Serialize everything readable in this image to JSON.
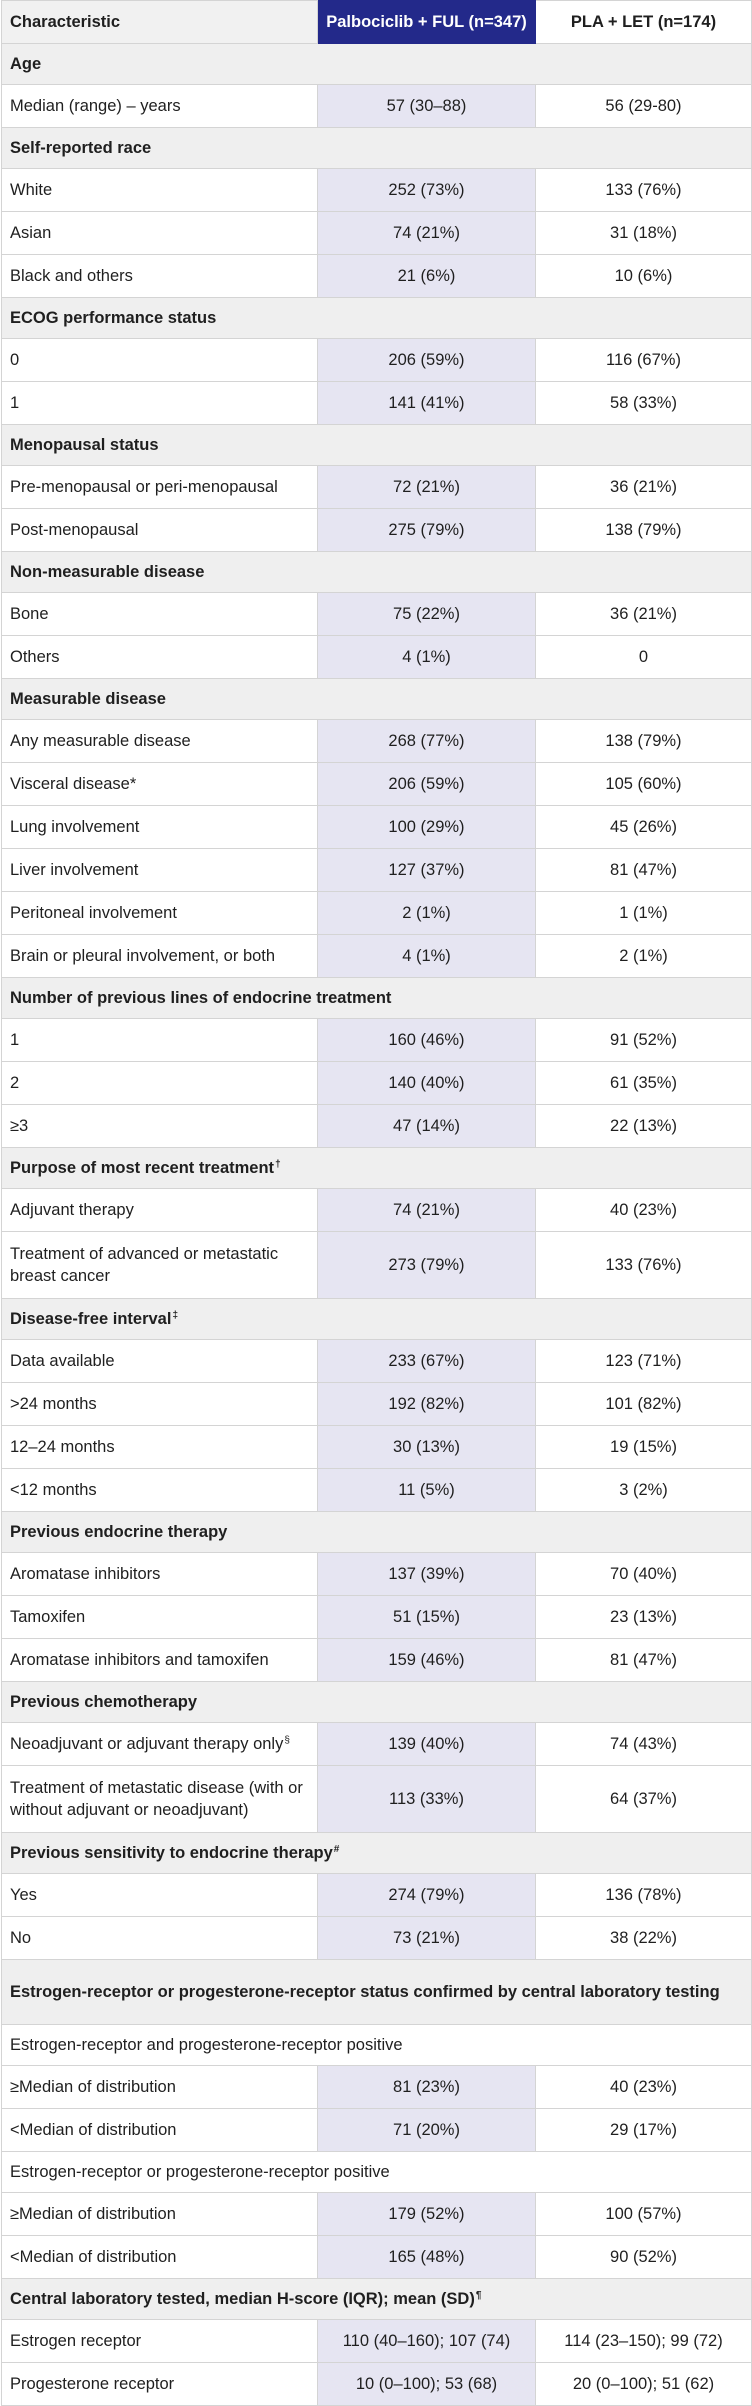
{
  "header": {
    "characteristic": "Characteristic",
    "arm1": "Palbociclib + FUL (n=347)",
    "arm2": "PLA + LET (n=174)"
  },
  "rows": [
    {
      "type": "section",
      "label": "Age"
    },
    {
      "type": "data",
      "label": "Median (range) – years",
      "v1": "57 (30–88)",
      "v2": "56 (29-80)"
    },
    {
      "type": "section",
      "label": "Self-reported race"
    },
    {
      "type": "data",
      "label": "White",
      "v1": "252 (73%)",
      "v2": "133 (76%)"
    },
    {
      "type": "data",
      "label": "Asian",
      "v1": "74 (21%)",
      "v2": "31 (18%)"
    },
    {
      "type": "data",
      "label": "Black and others",
      "v1": "21 (6%)",
      "v2": "10 (6%)"
    },
    {
      "type": "section",
      "label": "ECOG performance status"
    },
    {
      "type": "data",
      "label": "0",
      "v1": "206 (59%)",
      "v2": "116 (67%)"
    },
    {
      "type": "data",
      "label": "1",
      "v1": "141 (41%)",
      "v2": "58 (33%)"
    },
    {
      "type": "section",
      "label": "Menopausal status"
    },
    {
      "type": "data",
      "label": "Pre-menopausal or peri-menopausal",
      "v1": "72 (21%)",
      "v2": "36 (21%)"
    },
    {
      "type": "data",
      "label": "Post-menopausal",
      "v1": "275 (79%)",
      "v2": "138 (79%)"
    },
    {
      "type": "section",
      "label": "Non-measurable disease"
    },
    {
      "type": "data",
      "label": "Bone",
      "v1": "75 (22%)",
      "v2": "36 (21%)"
    },
    {
      "type": "data",
      "label": "Others",
      "v1": "4 (1%)",
      "v2": "0"
    },
    {
      "type": "section",
      "label": "Measurable disease"
    },
    {
      "type": "data",
      "label": "Any measurable disease",
      "v1": "268 (77%)",
      "v2": "138 (79%)"
    },
    {
      "type": "data",
      "label": "Visceral disease*",
      "v1": "206 (59%)",
      "v2": "105 (60%)"
    },
    {
      "type": "data",
      "label": "Lung involvement",
      "v1": "100 (29%)",
      "v2": "45 (26%)"
    },
    {
      "type": "data",
      "label": "Liver involvement",
      "v1": "127 (37%)",
      "v2": "81 (47%)"
    },
    {
      "type": "data",
      "label": "Peritoneal involvement",
      "v1": "2 (1%)",
      "v2": "1 (1%)"
    },
    {
      "type": "data",
      "label": "Brain or pleural involvement, or both",
      "v1": "4 (1%)",
      "v2": "2 (1%)"
    },
    {
      "type": "section",
      "label": "Number of previous lines of endocrine treatment"
    },
    {
      "type": "data",
      "label": "1",
      "v1": "160 (46%)",
      "v2": "91 (52%)"
    },
    {
      "type": "data",
      "label": "2",
      "v1": "140 (40%)",
      "v2": "61 (35%)"
    },
    {
      "type": "data",
      "label": "≥3",
      "v1": "47 (14%)",
      "v2": "22 (13%)"
    },
    {
      "type": "section",
      "label": "Purpose of most recent treatment",
      "mark": "†"
    },
    {
      "type": "data",
      "label": "Adjuvant therapy",
      "v1": "74 (21%)",
      "v2": "40 (23%)"
    },
    {
      "type": "data",
      "tall": true,
      "label": "Treatment of advanced or metastatic breast cancer",
      "v1": "273 (79%)",
      "v2": "133 (76%)"
    },
    {
      "type": "section",
      "label": "Disease-free interval",
      "mark": "‡"
    },
    {
      "type": "data",
      "label": "Data available",
      "v1": "233 (67%)",
      "v2": "123 (71%)"
    },
    {
      "type": "data",
      "label": ">24 months",
      "v1": "192 (82%)",
      "v2": "101 (82%)"
    },
    {
      "type": "data",
      "label": "12–24 months",
      "v1": "30 (13%)",
      "v2": "19 (15%)"
    },
    {
      "type": "data",
      "label": "<12 months",
      "v1": "11 (5%)",
      "v2": "3 (2%)"
    },
    {
      "type": "section",
      "label": "Previous endocrine therapy"
    },
    {
      "type": "data",
      "label": "Aromatase inhibitors",
      "v1": "137 (39%)",
      "v2": "70 (40%)"
    },
    {
      "type": "data",
      "label": "Tamoxifen",
      "v1": "51 (15%)",
      "v2": "23 (13%)"
    },
    {
      "type": "data",
      "label": "Aromatase inhibitors and tamoxifen",
      "v1": "159 (46%)",
      "v2": "81 (47%)"
    },
    {
      "type": "section",
      "label": "Previous chemotherapy"
    },
    {
      "type": "data",
      "label": "Neoadjuvant or adjuvant therapy only",
      "mark": "§",
      "v1": "139 (40%)",
      "v2": "74 (43%)"
    },
    {
      "type": "data",
      "tall": true,
      "label": "Treatment of metastatic disease (with or without adjuvant or neoadjuvant)",
      "v1": "113 (33%)",
      "v2": "64 (37%)"
    },
    {
      "type": "section",
      "label": "Previous sensitivity to endocrine therapy",
      "mark": "#"
    },
    {
      "type": "data",
      "label": "Yes",
      "v1": "274 (79%)",
      "v2": "136 (78%)"
    },
    {
      "type": "data",
      "label": "No",
      "v1": "73 (21%)",
      "v2": "38 (22%)"
    },
    {
      "type": "section",
      "tall": true,
      "label": "Estrogen-receptor or progesterone-receptor status confirmed by central laboratory testing"
    },
    {
      "type": "sub",
      "label": "Estrogen-receptor and progesterone-receptor positive"
    },
    {
      "type": "data",
      "label": "≥Median of distribution",
      "v1": "81 (23%)",
      "v2": "40 (23%)"
    },
    {
      "type": "data",
      "label": "<Median of distribution",
      "v1": "71 (20%)",
      "v2": "29 (17%)"
    },
    {
      "type": "sub",
      "label": "Estrogen-receptor or progesterone-receptor positive"
    },
    {
      "type": "data",
      "label": "≥Median of distribution",
      "v1": "179 (52%)",
      "v2": "100 (57%)"
    },
    {
      "type": "data",
      "label": "<Median of distribution",
      "v1": "165 (48%)",
      "v2": "90 (52%)"
    },
    {
      "type": "section",
      "label": "Central laboratory tested, median H-score (IQR); mean (SD)",
      "mark": "¶"
    },
    {
      "type": "data",
      "label": "Estrogen receptor",
      "v1": "110 (40–160); 107 (74)",
      "v2": "114 (23–150); 99 (72)"
    },
    {
      "type": "data",
      "label": "Progesterone receptor",
      "v1": "10 (0–100); 53 (68)",
      "v2": "20 (0–100); 51 (62)"
    }
  ]
}
